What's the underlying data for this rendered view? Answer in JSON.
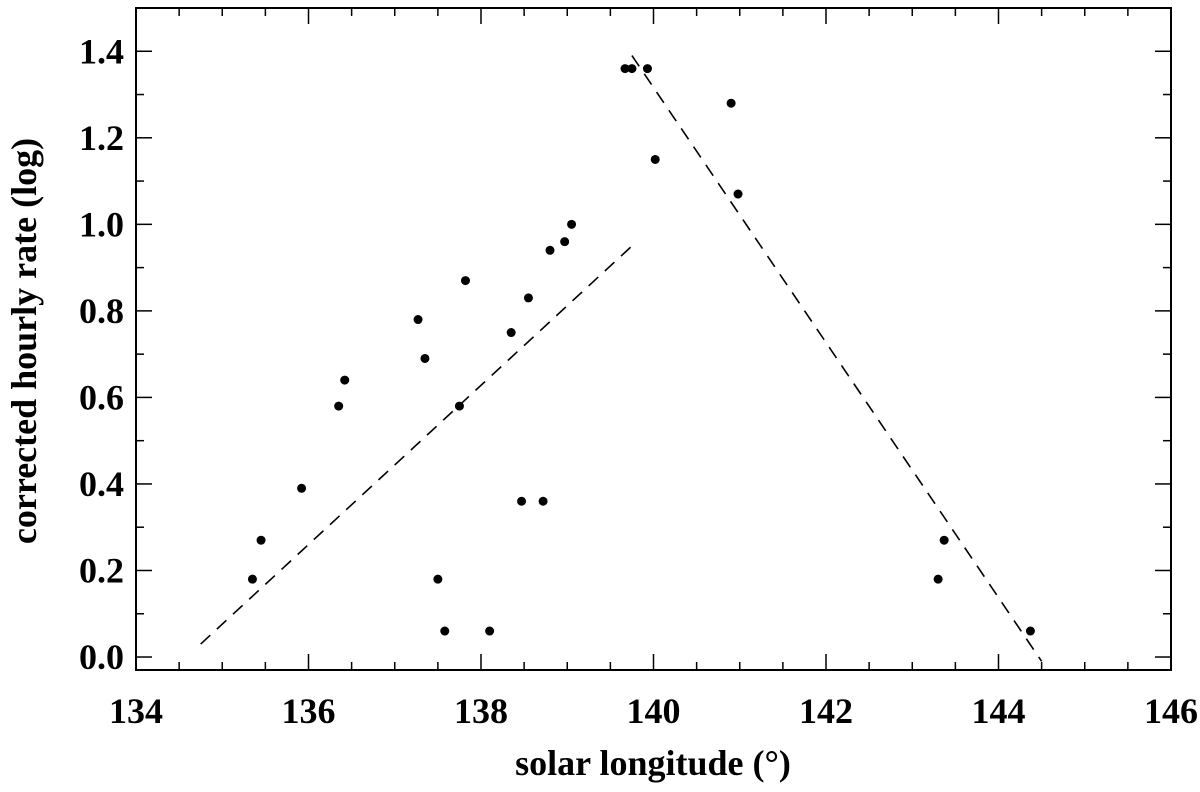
{
  "chart_data": {
    "type": "scatter",
    "title": "",
    "xlabel": "solar longitude (°)",
    "ylabel": "corrected hourly rate (log)",
    "xlim": [
      134,
      146
    ],
    "ylim": [
      -0.03,
      1.5
    ],
    "x_ticks": [
      134,
      136,
      138,
      140,
      142,
      144,
      146
    ],
    "x_tick_labels": [
      "134",
      "136",
      "138",
      "140",
      "142",
      "144",
      "146"
    ],
    "y_ticks": [
      0.0,
      0.2,
      0.4,
      0.6,
      0.8,
      1.0,
      1.2,
      1.4
    ],
    "y_tick_labels": [
      "0.0",
      "0.2",
      "0.4",
      "0.6",
      "0.8",
      "1.0",
      "1.2",
      "1.4"
    ],
    "grid": false,
    "series": [
      {
        "marker": "dot",
        "color": "#000000",
        "points": [
          [
            135.35,
            0.18
          ],
          [
            135.45,
            0.27
          ],
          [
            135.92,
            0.39
          ],
          [
            136.35,
            0.58
          ],
          [
            136.42,
            0.64
          ],
          [
            137.27,
            0.78
          ],
          [
            137.35,
            0.69
          ],
          [
            137.5,
            0.18
          ],
          [
            137.58,
            0.06
          ],
          [
            137.75,
            0.58
          ],
          [
            137.82,
            0.87
          ],
          [
            138.1,
            0.06
          ],
          [
            138.35,
            0.75
          ],
          [
            138.47,
            0.36
          ],
          [
            138.55,
            0.83
          ],
          [
            138.72,
            0.36
          ],
          [
            138.8,
            0.94
          ],
          [
            138.97,
            0.96
          ],
          [
            139.05,
            1.0
          ],
          [
            139.67,
            1.36
          ],
          [
            139.75,
            1.36
          ],
          [
            139.93,
            1.36
          ],
          [
            140.02,
            1.15
          ],
          [
            140.9,
            1.28
          ],
          [
            140.98,
            1.07
          ],
          [
            143.3,
            0.18
          ],
          [
            143.37,
            0.27
          ],
          [
            144.37,
            0.06
          ]
        ]
      }
    ],
    "trend_lines": [
      {
        "style": "dashed",
        "color": "#000000",
        "x": [
          134.75,
          139.75
        ],
        "y": [
          0.03,
          0.95
        ]
      },
      {
        "style": "dashed",
        "color": "#000000",
        "x": [
          139.75,
          144.5
        ],
        "y": [
          1.39,
          -0.01
        ]
      }
    ]
  }
}
